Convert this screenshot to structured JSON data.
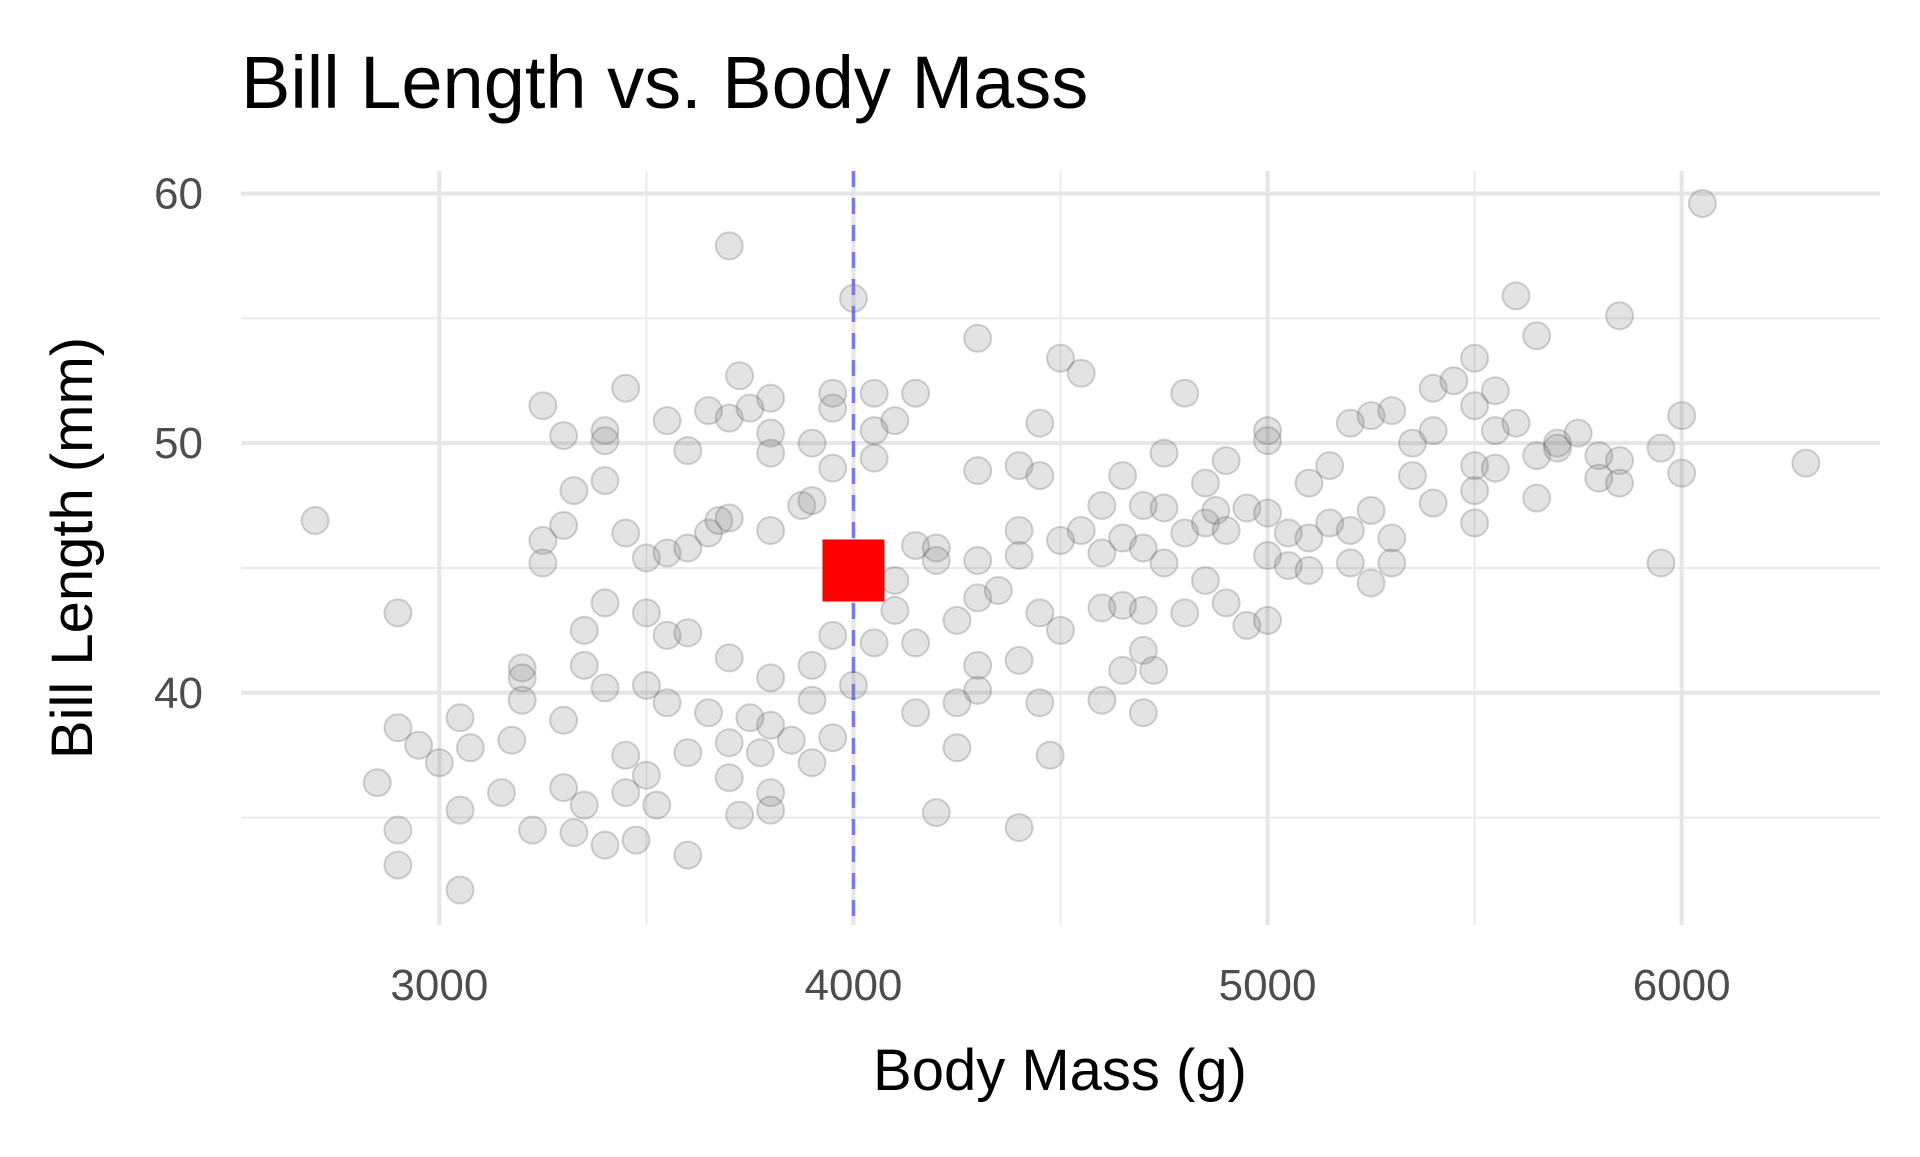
{
  "chart_data": {
    "type": "scatter",
    "title": "Bill Length vs. Body Mass",
    "xlabel": "Body Mass (g)",
    "ylabel": "Bill Length (mm)",
    "xlim": [
      2521,
      6479
    ],
    "ylim": [
      30.7,
      60.9
    ],
    "x_ticks": [
      3000,
      4000,
      5000,
      6000
    ],
    "x_tick_labels": [
      "3000",
      "4000",
      "5000",
      "6000"
    ],
    "x_minor": [
      3500,
      4500,
      5500
    ],
    "y_ticks": [
      40,
      50,
      60
    ],
    "y_tick_labels": [
      "40",
      "50",
      "60"
    ],
    "y_minor": [
      35,
      45,
      55
    ],
    "grid": true,
    "vline": {
      "x": 4000,
      "color": "#7b7be8",
      "style": "dashed"
    },
    "highlight": {
      "x": 4000,
      "y": 44.9,
      "color": "#ff0000",
      "shape": "square"
    },
    "point_color": "#808080",
    "points": [
      [
        2700,
        46.9
      ],
      [
        2900,
        43.2
      ],
      [
        2850,
        36.4
      ],
      [
        2900,
        38.6
      ],
      [
        2900,
        34.5
      ],
      [
        2900,
        33.1
      ],
      [
        3050,
        32.1
      ],
      [
        2950,
        37.9
      ],
      [
        3000,
        37.2
      ],
      [
        3050,
        39.0
      ],
      [
        3050,
        35.3
      ],
      [
        3075,
        37.8
      ],
      [
        3150,
        36.0
      ],
      [
        3175,
        38.1
      ],
      [
        3200,
        41.0
      ],
      [
        3200,
        40.6
      ],
      [
        3200,
        39.7
      ],
      [
        3225,
        34.5
      ],
      [
        3250,
        46.1
      ],
      [
        3250,
        45.2
      ],
      [
        3250,
        51.5
      ],
      [
        3300,
        50.3
      ],
      [
        3300,
        46.7
      ],
      [
        3325,
        48.1
      ],
      [
        3300,
        38.9
      ],
      [
        3300,
        36.2
      ],
      [
        3350,
        42.5
      ],
      [
        3350,
        41.1
      ],
      [
        3325,
        34.4
      ],
      [
        3350,
        35.5
      ],
      [
        3400,
        50.5
      ],
      [
        3400,
        50.1
      ],
      [
        3400,
        48.5
      ],
      [
        3400,
        43.6
      ],
      [
        3400,
        40.2
      ],
      [
        3400,
        33.9
      ],
      [
        3450,
        52.2
      ],
      [
        3450,
        46.4
      ],
      [
        3450,
        37.5
      ],
      [
        3450,
        36.0
      ],
      [
        3475,
        34.1
      ],
      [
        3500,
        45.4
      ],
      [
        3500,
        43.2
      ],
      [
        3500,
        40.3
      ],
      [
        3500,
        36.7
      ],
      [
        3525,
        35.5
      ],
      [
        3550,
        50.9
      ],
      [
        3550,
        45.6
      ],
      [
        3550,
        42.3
      ],
      [
        3550,
        39.6
      ],
      [
        3600,
        49.7
      ],
      [
        3600,
        45.8
      ],
      [
        3600,
        42.4
      ],
      [
        3600,
        37.6
      ],
      [
        3600,
        33.5
      ],
      [
        3650,
        51.3
      ],
      [
        3650,
        46.4
      ],
      [
        3650,
        39.2
      ],
      [
        3675,
        46.9
      ],
      [
        3700,
        57.9
      ],
      [
        3700,
        51.0
      ],
      [
        3700,
        47.0
      ],
      [
        3700,
        41.4
      ],
      [
        3700,
        38.0
      ],
      [
        3700,
        36.6
      ],
      [
        3725,
        52.7
      ],
      [
        3725,
        35.1
      ],
      [
        3750,
        51.4
      ],
      [
        3750,
        39.0
      ],
      [
        3775,
        37.6
      ],
      [
        3800,
        51.8
      ],
      [
        3800,
        50.4
      ],
      [
        3800,
        49.6
      ],
      [
        3800,
        46.5
      ],
      [
        3800,
        40.6
      ],
      [
        3800,
        38.7
      ],
      [
        3800,
        36.0
      ],
      [
        3800,
        35.3
      ],
      [
        3850,
        38.1
      ],
      [
        3875,
        47.5
      ],
      [
        3900,
        50.0
      ],
      [
        3900,
        47.7
      ],
      [
        3900,
        41.1
      ],
      [
        3900,
        39.7
      ],
      [
        3900,
        37.2
      ],
      [
        3950,
        52.0
      ],
      [
        3950,
        51.4
      ],
      [
        3950,
        49.0
      ],
      [
        3950,
        42.3
      ],
      [
        3950,
        38.2
      ],
      [
        4000,
        55.8
      ],
      [
        4000,
        45.2
      ],
      [
        4000,
        40.3
      ],
      [
        4050,
        52.0
      ],
      [
        4050,
        50.5
      ],
      [
        4050,
        49.4
      ],
      [
        4050,
        42.0
      ],
      [
        4100,
        50.9
      ],
      [
        4100,
        44.5
      ],
      [
        4100,
        43.3
      ],
      [
        4150,
        52.0
      ],
      [
        4150,
        45.9
      ],
      [
        4150,
        42.0
      ],
      [
        4150,
        39.2
      ],
      [
        4200,
        45.8
      ],
      [
        4200,
        45.3
      ],
      [
        4200,
        35.2
      ],
      [
        4250,
        42.9
      ],
      [
        4250,
        39.6
      ],
      [
        4250,
        37.8
      ],
      [
        4300,
        54.2
      ],
      [
        4300,
        48.9
      ],
      [
        4300,
        45.3
      ],
      [
        4300,
        43.8
      ],
      [
        4300,
        41.1
      ],
      [
        4300,
        40.1
      ],
      [
        4350,
        44.1
      ],
      [
        4400,
        49.1
      ],
      [
        4400,
        46.5
      ],
      [
        4400,
        45.5
      ],
      [
        4400,
        41.3
      ],
      [
        4400,
        34.6
      ],
      [
        4450,
        50.8
      ],
      [
        4450,
        48.7
      ],
      [
        4450,
        43.2
      ],
      [
        4450,
        39.6
      ],
      [
        4475,
        37.5
      ],
      [
        4500,
        53.4
      ],
      [
        4500,
        46.1
      ],
      [
        4500,
        42.5
      ],
      [
        4550,
        52.8
      ],
      [
        4550,
        46.5
      ],
      [
        4600,
        47.5
      ],
      [
        4600,
        45.6
      ],
      [
        4600,
        43.4
      ],
      [
        4600,
        39.7
      ],
      [
        4650,
        48.7
      ],
      [
        4650,
        46.2
      ],
      [
        4650,
        43.5
      ],
      [
        4650,
        40.9
      ],
      [
        4700,
        47.5
      ],
      [
        4700,
        45.8
      ],
      [
        4700,
        43.3
      ],
      [
        4700,
        41.7
      ],
      [
        4700,
        39.2
      ],
      [
        4725,
        40.9
      ],
      [
        4750,
        49.6
      ],
      [
        4750,
        47.4
      ],
      [
        4750,
        45.2
      ],
      [
        4800,
        52.0
      ],
      [
        4800,
        46.4
      ],
      [
        4800,
        43.2
      ],
      [
        4850,
        48.4
      ],
      [
        4850,
        46.8
      ],
      [
        4850,
        44.5
      ],
      [
        4875,
        47.3
      ],
      [
        4900,
        49.3
      ],
      [
        4900,
        46.5
      ],
      [
        4900,
        43.6
      ],
      [
        4950,
        47.4
      ],
      [
        4950,
        42.7
      ],
      [
        5000,
        50.5
      ],
      [
        5000,
        50.1
      ],
      [
        5000,
        47.2
      ],
      [
        5000,
        45.5
      ],
      [
        5000,
        42.9
      ],
      [
        5050,
        46.4
      ],
      [
        5050,
        45.1
      ],
      [
        5100,
        48.4
      ],
      [
        5100,
        46.2
      ],
      [
        5100,
        44.9
      ],
      [
        5150,
        49.1
      ],
      [
        5150,
        46.8
      ],
      [
        5200,
        50.8
      ],
      [
        5200,
        46.5
      ],
      [
        5200,
        45.2
      ],
      [
        5250,
        51.1
      ],
      [
        5250,
        47.3
      ],
      [
        5250,
        44.4
      ],
      [
        5300,
        51.3
      ],
      [
        5300,
        46.2
      ],
      [
        5300,
        45.2
      ],
      [
        5350,
        48.7
      ],
      [
        5350,
        50.0
      ],
      [
        5400,
        52.2
      ],
      [
        5400,
        50.5
      ],
      [
        5400,
        47.6
      ],
      [
        5450,
        52.5
      ],
      [
        5500,
        53.4
      ],
      [
        5500,
        51.5
      ],
      [
        5500,
        49.1
      ],
      [
        5500,
        48.1
      ],
      [
        5500,
        46.8
      ],
      [
        5550,
        52.1
      ],
      [
        5550,
        50.5
      ],
      [
        5550,
        49.0
      ],
      [
        5600,
        55.9
      ],
      [
        5600,
        50.8
      ],
      [
        5650,
        54.3
      ],
      [
        5650,
        49.5
      ],
      [
        5650,
        47.8
      ],
      [
        5700,
        50.0
      ],
      [
        5700,
        49.8
      ],
      [
        5750,
        50.4
      ],
      [
        5800,
        49.5
      ],
      [
        5800,
        48.6
      ],
      [
        5850,
        55.1
      ],
      [
        5850,
        49.3
      ],
      [
        5850,
        48.4
      ],
      [
        5950,
        49.8
      ],
      [
        5950,
        45.2
      ],
      [
        6000,
        51.1
      ],
      [
        6000,
        48.8
      ],
      [
        6050,
        59.6
      ],
      [
        6300,
        49.2
      ]
    ]
  }
}
